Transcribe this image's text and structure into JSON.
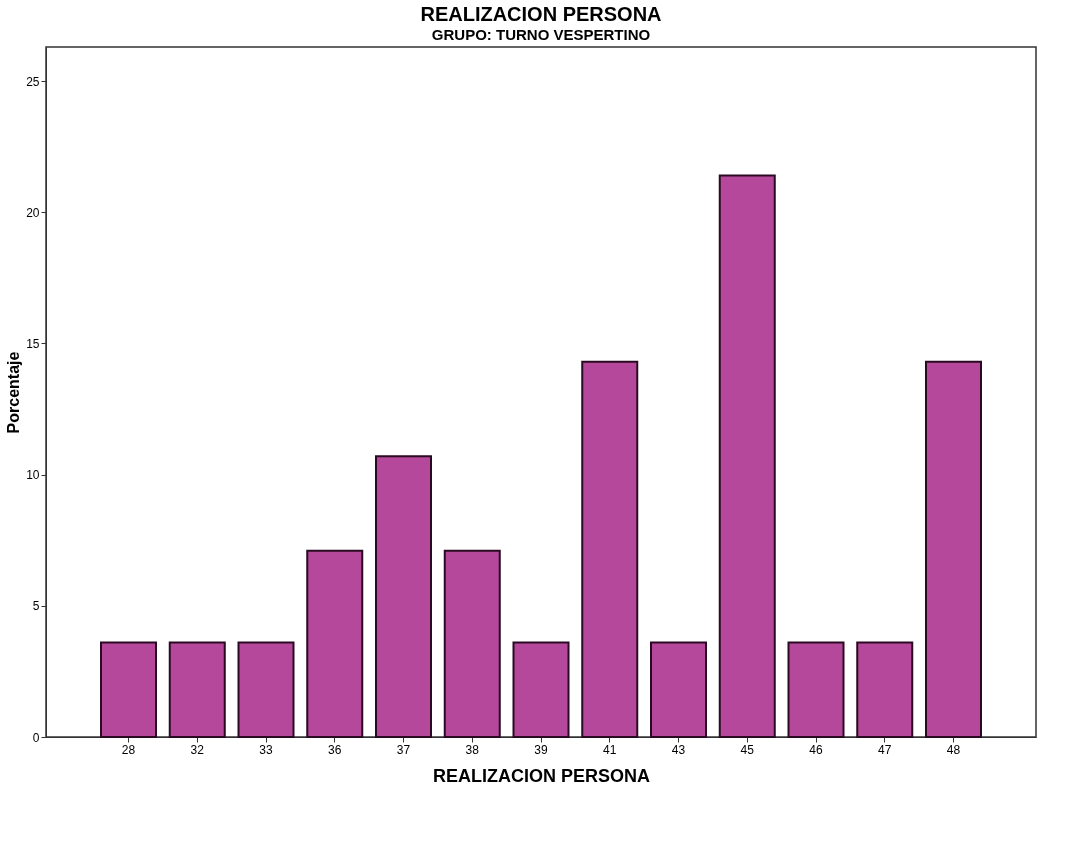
{
  "chart_data": {
    "type": "bar",
    "title": "REALIZACION PERSONA",
    "subtitle": "GRUPO: TURNO VESPERTINO",
    "xlabel": "REALIZACION PERSONA",
    "ylabel": "Porcentaje",
    "categories": [
      "28",
      "32",
      "33",
      "36",
      "37",
      "38",
      "39",
      "41",
      "43",
      "45",
      "46",
      "47",
      "48"
    ],
    "values": [
      3.6,
      3.6,
      3.6,
      7.1,
      10.7,
      7.1,
      3.6,
      14.3,
      3.6,
      21.4,
      3.6,
      3.6,
      14.3
    ],
    "color": "#b5489a",
    "ylim": [
      0,
      26.3
    ],
    "yticks": [
      0,
      5,
      10,
      15,
      20,
      25
    ],
    "grid": false
  }
}
